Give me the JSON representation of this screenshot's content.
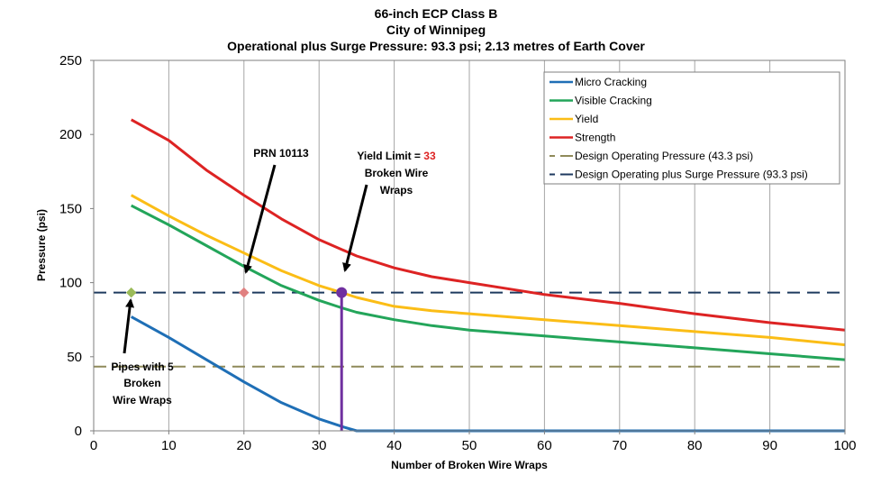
{
  "chart_data": {
    "type": "line",
    "title_lines": [
      "66-inch ECP Class B",
      "City of Winnipeg",
      "Operational plus Surge Pressure:  93.3 psi; 2.13 metres of Earth Cover"
    ],
    "xlabel": "Number of Broken Wire Wraps",
    "ylabel": "Pressure (psi)",
    "xlim": [
      0,
      100
    ],
    "ylim": [
      0,
      250
    ],
    "xticks": [
      "0",
      "10",
      "20",
      "30",
      "40",
      "50",
      "60",
      "70",
      "80",
      "90",
      "100"
    ],
    "yticks": [
      "0",
      "50",
      "100",
      "150",
      "200",
      "250"
    ],
    "grid": "vertical",
    "legend_position": "top-right",
    "series": [
      {
        "name": "Micro Cracking",
        "color": "#1f6fb6",
        "dash": "solid",
        "points": [
          [
            5,
            77
          ],
          [
            10,
            63
          ],
          [
            15,
            48
          ],
          [
            20,
            33
          ],
          [
            25,
            19
          ],
          [
            30,
            8
          ],
          [
            33,
            3
          ],
          [
            35,
            0
          ],
          [
            40,
            0
          ],
          [
            50,
            0
          ],
          [
            60,
            0
          ],
          [
            70,
            0
          ],
          [
            80,
            0
          ],
          [
            90,
            0
          ],
          [
            100,
            0
          ]
        ]
      },
      {
        "name": "Visible Cracking",
        "color": "#23a55a",
        "dash": "solid",
        "points": [
          [
            5,
            152
          ],
          [
            10,
            139
          ],
          [
            15,
            125
          ],
          [
            20,
            111
          ],
          [
            25,
            98
          ],
          [
            30,
            88
          ],
          [
            33,
            83
          ],
          [
            35,
            80
          ],
          [
            40,
            75
          ],
          [
            45,
            71
          ],
          [
            50,
            68
          ],
          [
            60,
            64
          ],
          [
            70,
            60
          ],
          [
            80,
            56
          ],
          [
            90,
            52
          ],
          [
            100,
            48
          ]
        ]
      },
      {
        "name": "Yield",
        "color": "#fbbd16",
        "dash": "solid",
        "points": [
          [
            5,
            159
          ],
          [
            10,
            145
          ],
          [
            15,
            132
          ],
          [
            20,
            120
          ],
          [
            25,
            108
          ],
          [
            30,
            98
          ],
          [
            33,
            93.3
          ],
          [
            35,
            90
          ],
          [
            40,
            84
          ],
          [
            45,
            81
          ],
          [
            50,
            79
          ],
          [
            60,
            75
          ],
          [
            70,
            71
          ],
          [
            80,
            67
          ],
          [
            90,
            63
          ],
          [
            100,
            58
          ]
        ]
      },
      {
        "name": "Strength",
        "color": "#dd2323",
        "dash": "solid",
        "points": [
          [
            5,
            210
          ],
          [
            10,
            196
          ],
          [
            15,
            176
          ],
          [
            20,
            159
          ],
          [
            25,
            143
          ],
          [
            30,
            129
          ],
          [
            35,
            118
          ],
          [
            40,
            110
          ],
          [
            45,
            104
          ],
          [
            50,
            100
          ],
          [
            55,
            96
          ],
          [
            60,
            92
          ],
          [
            70,
            86
          ],
          [
            80,
            79
          ],
          [
            90,
            73
          ],
          [
            100,
            68
          ]
        ]
      },
      {
        "name": "Design Operating Pressure (43.3 psi)",
        "color": "#8f8a5a",
        "dash": "dashed",
        "points": [
          [
            0,
            43.3
          ],
          [
            100,
            43.3
          ]
        ]
      },
      {
        "name": "Design Operating plus Surge Pressure (93.3 psi)",
        "color": "#1e3a5f",
        "dash": "dashed",
        "points": [
          [
            0,
            93.3
          ],
          [
            100,
            93.3
          ]
        ]
      }
    ],
    "markers": [
      {
        "name": "pipes-5-wraps-marker",
        "x": 5,
        "y": 93.3,
        "color": "#9bbb59",
        "shape": "diamond"
      },
      {
        "name": "prn-10113-marker",
        "x": 20,
        "y": 93.3,
        "color": "#e08080",
        "shape": "diamond"
      },
      {
        "name": "yield-limit-marker",
        "x": 33,
        "y": 93.3,
        "color": "#7030a0",
        "shape": "circle"
      }
    ],
    "drop_line": {
      "x": 33,
      "y_from": 93.3,
      "y_to": 0,
      "color": "#7030a0"
    },
    "annotations": {
      "prn": {
        "text": "PRN 10113",
        "target_x": 20,
        "target_y": 105
      },
      "yield_limit": {
        "line1_prefix": "Yield Limit = ",
        "line1_value": "33",
        "line1_value_color": "#dd2323",
        "line2": "Broken Wire",
        "line3": "Wraps",
        "target_x": 33.5,
        "target_y": 103
      },
      "pipes": {
        "lines": [
          "Pipes with 5",
          "Broken",
          "Wire Wraps"
        ],
        "target_x": 5,
        "target_y": 90
      }
    }
  }
}
